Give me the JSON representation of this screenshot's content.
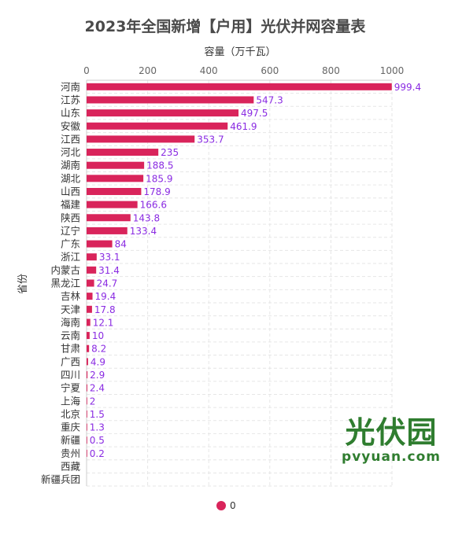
{
  "chart_data": {
    "type": "bar",
    "orientation": "horizontal",
    "title": "2023年全国新增【户用】光伏并网容量表",
    "xlabel": "容量（万千瓦）",
    "ylabel": "省份",
    "xlim": [
      0,
      1000
    ],
    "xticks": [
      "0",
      "200",
      "400",
      "600",
      "800",
      "1000"
    ],
    "xaxis_position": "top",
    "grid": true,
    "legend_position": "bottom-center",
    "bar_color": "#d9245b",
    "label_color": "#8a2be2",
    "categories": [
      "河南",
      "江苏",
      "山东",
      "安徽",
      "江西",
      "河北",
      "湖南",
      "湖北",
      "山西",
      "福建",
      "陕西",
      "辽宁",
      "广东",
      "浙江",
      "内蒙古",
      "黑龙江",
      "吉林",
      "天津",
      "海南",
      "云南",
      "甘肃",
      "广西",
      "四川",
      "宁夏",
      "上海",
      "北京",
      "重庆",
      "新疆",
      "贵州",
      "西藏",
      "新疆兵团"
    ],
    "series": [
      {
        "name": "0",
        "values": [
          999.4,
          547.3,
          497.5,
          461.9,
          353.7,
          235,
          188.5,
          185.9,
          178.9,
          166.6,
          143.8,
          133.4,
          84,
          33.1,
          31.4,
          24.7,
          19.4,
          17.8,
          12.1,
          10,
          8.2,
          4.9,
          2.9,
          2.4,
          2,
          1.5,
          1.3,
          0.5,
          0.2,
          null,
          null
        ],
        "labels": [
          "999.4",
          "547.3",
          "497.5",
          "461.9",
          "353.7",
          "235",
          "188.5",
          "185.9",
          "178.9",
          "166.6",
          "143.8",
          "133.4",
          "84",
          "33.1",
          "31.4",
          "24.7",
          "19.4",
          "17.8",
          "12.1",
          "10",
          "8.2",
          "4.9",
          "2.9",
          "2.4",
          "2",
          "1.5",
          "1.3",
          "0.5",
          "0.2",
          "",
          ""
        ]
      }
    ]
  },
  "watermark": {
    "brand_cn": "光伏园",
    "brand_url": "pvyuan.com"
  }
}
